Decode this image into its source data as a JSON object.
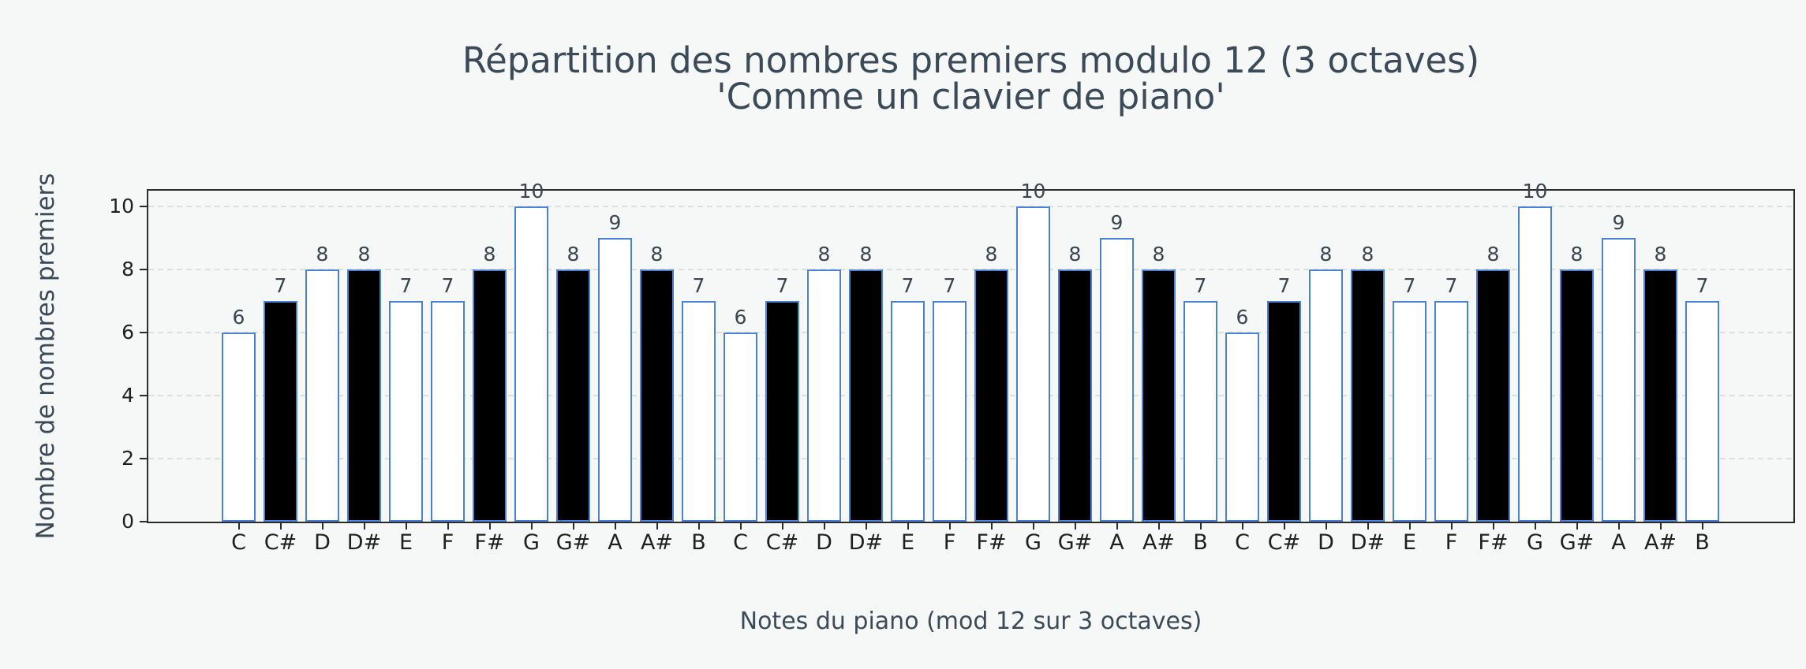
{
  "title": {
    "line1": "Répartition des nombres premiers modulo 12 (3 octaves)",
    "line2": "'Comme un clavier de piano'"
  },
  "chart_data": {
    "type": "bar",
    "title": "Répartition des nombres premiers modulo 12 (3 octaves)",
    "subtitle": "'Comme un clavier de piano'",
    "xlabel": "Notes du piano (mod 12 sur 3 octaves)",
    "ylabel": "Nombre de nombres premiers",
    "categories": [
      "C",
      "C#",
      "D",
      "D#",
      "E",
      "F",
      "F#",
      "G",
      "G#",
      "A",
      "A#",
      "B",
      "C",
      "C#",
      "D",
      "D#",
      "E",
      "F",
      "F#",
      "G",
      "G#",
      "A",
      "A#",
      "B",
      "C",
      "C#",
      "D",
      "D#",
      "E",
      "F",
      "F#",
      "G",
      "G#",
      "A",
      "A#",
      "B"
    ],
    "values": [
      6,
      7,
      8,
      8,
      7,
      7,
      8,
      10,
      8,
      9,
      8,
      7,
      6,
      7,
      8,
      8,
      7,
      7,
      8,
      10,
      8,
      9,
      8,
      7,
      6,
      7,
      8,
      8,
      7,
      7,
      8,
      10,
      8,
      9,
      8,
      7
    ],
    "key_types": [
      "white",
      "black",
      "white",
      "black",
      "white",
      "white",
      "black",
      "white",
      "black",
      "white",
      "black",
      "white",
      "white",
      "black",
      "white",
      "black",
      "white",
      "white",
      "black",
      "white",
      "black",
      "white",
      "black",
      "white",
      "white",
      "black",
      "white",
      "black",
      "white",
      "white",
      "black",
      "white",
      "black",
      "white",
      "black",
      "white"
    ],
    "yticks": [
      0,
      2,
      4,
      6,
      8,
      10
    ],
    "ylim": [
      0,
      10.5
    ],
    "grid": "horizontal-dashed",
    "legend": "none",
    "colors": {
      "background": "#f6f8f8",
      "white_key_fill": "#ffffff",
      "black_key_fill": "#000000",
      "bar_edge": "#4a82d8",
      "spine": "#2b2b2b",
      "grid": "#dcdfe0",
      "title_text": "#3b4a58",
      "axis_label_text": "#3b4a58",
      "tick_text": "#1f1f1f",
      "value_label_text": "#3b4450"
    }
  }
}
